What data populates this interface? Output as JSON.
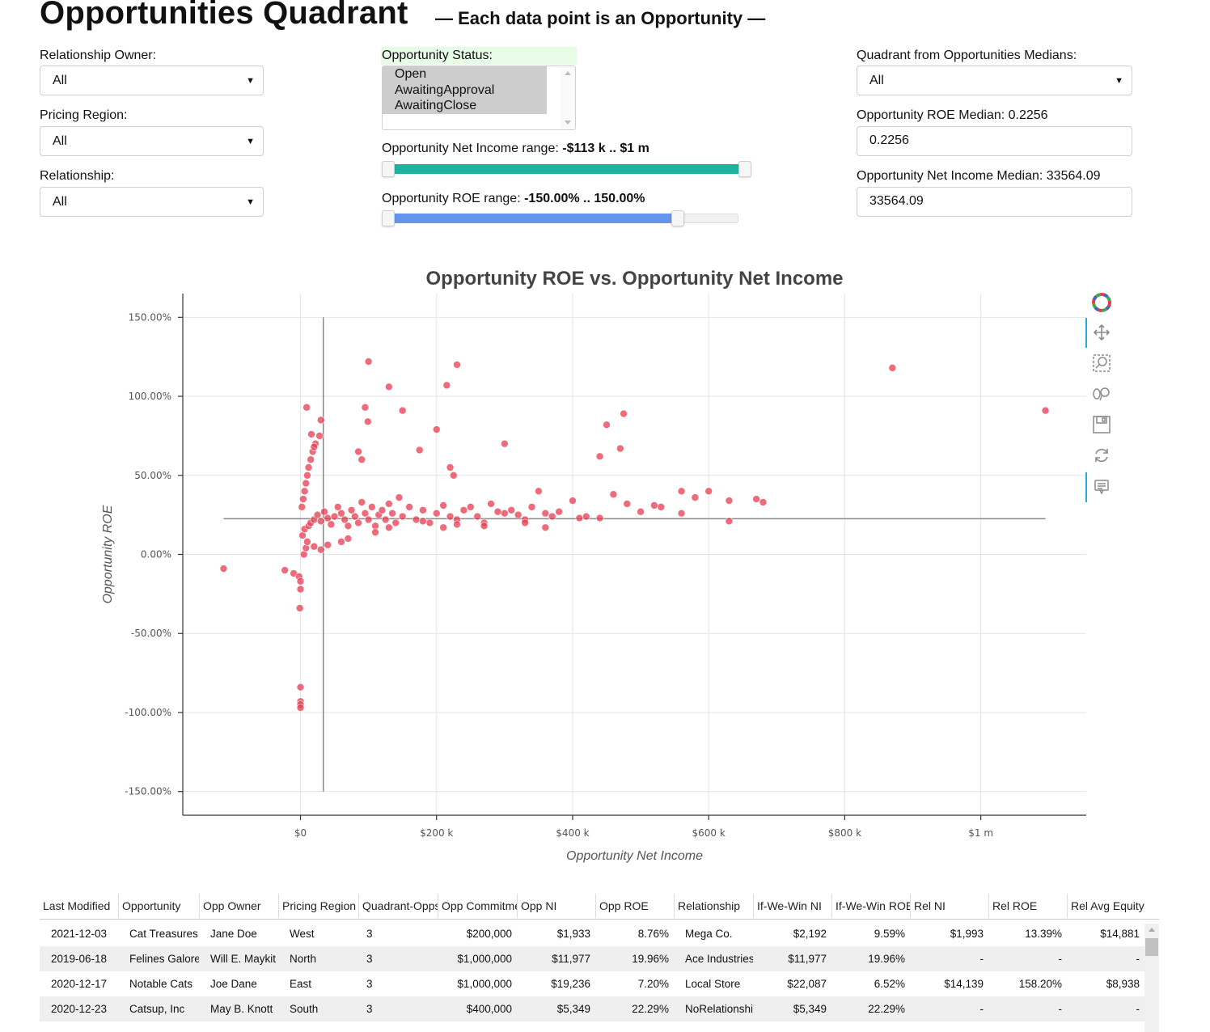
{
  "header": {
    "title": "Opportunities Quadrant",
    "subtitle": "— Each data point is an Opportunity —"
  },
  "filters": {
    "relationship_owner": {
      "label": "Relationship Owner:",
      "value": "All"
    },
    "pricing_region": {
      "label": "Pricing Region:",
      "value": "All"
    },
    "relationship": {
      "label": "Relationship:",
      "value": "All"
    },
    "opportunity_status": {
      "label": "Opportunity Status:",
      "options": [
        "Open",
        "AwaitingApproval",
        "AwaitingClose"
      ]
    },
    "net_income_range": {
      "label": "Opportunity Net Income range: ",
      "value": "-$113 k .. $1 m",
      "fill_fraction": [
        0.0,
        1.0
      ],
      "color": "#20b2a0"
    },
    "roe_range": {
      "label": "Opportunity ROE range: ",
      "value": "-150.00% .. 150.00%",
      "fill_fraction": [
        0.0,
        0.83
      ],
      "color": "#6495ed"
    },
    "quadrant": {
      "label": "Quadrant from Opportunities Medians:",
      "value": "All"
    },
    "roe_median": {
      "label": "Opportunity ROE Median: 0.2256",
      "value": "0.2256"
    },
    "ni_median": {
      "label": "Opportunity Net Income Median: 33564.09",
      "value": "33564.09"
    }
  },
  "chart_data": {
    "type": "scatter",
    "title": "Opportunity ROE vs. Opportunity Net Income",
    "xlabel": "Opportunity Net Income",
    "ylabel": "Opportunity ROE",
    "x_ticks": [
      {
        "v": 0,
        "label": "$0"
      },
      {
        "v": 200000,
        "label": "$200 k"
      },
      {
        "v": 400000,
        "label": "$400 k"
      },
      {
        "v": 600000,
        "label": "$600 k"
      },
      {
        "v": 800000,
        "label": "$800 k"
      },
      {
        "v": 1000000,
        "label": "$1 m"
      }
    ],
    "y_ticks": [
      {
        "v": 150,
        "label": "150.00%"
      },
      {
        "v": 100,
        "label": "100.00%"
      },
      {
        "v": 50,
        "label": "50.00%"
      },
      {
        "v": 0,
        "label": "0.00%"
      },
      {
        "v": -50,
        "label": "-50.00%"
      },
      {
        "v": -100,
        "label": "-100.00%"
      },
      {
        "v": -150,
        "label": "-150.00%"
      }
    ],
    "xlim": [
      -173000,
      1155000
    ],
    "ylim": [
      -165,
      165
    ],
    "median_x": 33564.09,
    "median_y": 22.56,
    "grid": true,
    "point_color": "#e8394f",
    "series": [
      {
        "points": [
          [
            -113000,
            -9
          ],
          [
            -23000,
            -10
          ],
          [
            -10000,
            -12
          ],
          [
            -2000,
            -14
          ],
          [
            0,
            -17
          ],
          [
            0,
            -22
          ],
          [
            -1000,
            -34
          ],
          [
            0,
            -84
          ],
          [
            0,
            -93
          ],
          [
            0,
            -95
          ],
          [
            0,
            -97
          ],
          [
            5000,
            0
          ],
          [
            8000,
            4
          ],
          [
            10000,
            8
          ],
          [
            3000,
            12
          ],
          [
            6000,
            16
          ],
          [
            12000,
            18
          ],
          [
            15000,
            20
          ],
          [
            20000,
            22
          ],
          [
            25000,
            25
          ],
          [
            30000,
            21
          ],
          [
            35000,
            27
          ],
          [
            40000,
            23
          ],
          [
            45000,
            19
          ],
          [
            50000,
            24
          ],
          [
            2000,
            30
          ],
          [
            4000,
            35
          ],
          [
            6000,
            40
          ],
          [
            8000,
            45
          ],
          [
            10000,
            50
          ],
          [
            12000,
            55
          ],
          [
            15000,
            60
          ],
          [
            18000,
            65
          ],
          [
            22000,
            70
          ],
          [
            28000,
            75
          ],
          [
            9000,
            93
          ],
          [
            30000,
            85
          ],
          [
            16000,
            76
          ],
          [
            20000,
            68
          ],
          [
            55000,
            30
          ],
          [
            60000,
            26
          ],
          [
            65000,
            22
          ],
          [
            70000,
            18
          ],
          [
            75000,
            28
          ],
          [
            80000,
            24
          ],
          [
            85000,
            20
          ],
          [
            90000,
            33
          ],
          [
            95000,
            26
          ],
          [
            100000,
            22
          ],
          [
            105000,
            30
          ],
          [
            110000,
            18
          ],
          [
            115000,
            25
          ],
          [
            120000,
            28
          ],
          [
            125000,
            22
          ],
          [
            130000,
            32
          ],
          [
            135000,
            26
          ],
          [
            140000,
            20
          ],
          [
            145000,
            36
          ],
          [
            150000,
            24
          ],
          [
            160000,
            30
          ],
          [
            170000,
            22
          ],
          [
            180000,
            28
          ],
          [
            190000,
            20
          ],
          [
            200000,
            26
          ],
          [
            210000,
            31
          ],
          [
            220000,
            24
          ],
          [
            230000,
            22
          ],
          [
            240000,
            28
          ],
          [
            250000,
            30
          ],
          [
            260000,
            24
          ],
          [
            270000,
            20
          ],
          [
            280000,
            32
          ],
          [
            290000,
            27
          ],
          [
            300000,
            26
          ],
          [
            310000,
            28
          ],
          [
            320000,
            25
          ],
          [
            330000,
            22
          ],
          [
            340000,
            30
          ],
          [
            350000,
            40
          ],
          [
            360000,
            26
          ],
          [
            370000,
            24
          ],
          [
            380000,
            27
          ],
          [
            400000,
            34
          ],
          [
            420000,
            24
          ],
          [
            440000,
            23
          ],
          [
            460000,
            38
          ],
          [
            480000,
            32
          ],
          [
            500000,
            27
          ],
          [
            530000,
            30
          ],
          [
            560000,
            26
          ],
          [
            580000,
            36
          ],
          [
            600000,
            40
          ],
          [
            630000,
            34
          ],
          [
            630000,
            21
          ],
          [
            670000,
            35
          ],
          [
            680000,
            33
          ],
          [
            560000,
            40
          ],
          [
            440000,
            62
          ],
          [
            450000,
            82
          ],
          [
            470000,
            67
          ],
          [
            475000,
            89
          ],
          [
            100000,
            122
          ],
          [
            230000,
            120
          ],
          [
            130000,
            106
          ],
          [
            215000,
            107
          ],
          [
            150000,
            91
          ],
          [
            200000,
            79
          ],
          [
            175000,
            66
          ],
          [
            300000,
            70
          ],
          [
            220000,
            55
          ],
          [
            225000,
            50
          ],
          [
            95000,
            93
          ],
          [
            99000,
            84
          ],
          [
            85000,
            65
          ],
          [
            90000,
            60
          ],
          [
            870000,
            118
          ],
          [
            1095000,
            91
          ],
          [
            520000,
            31
          ],
          [
            410000,
            23
          ],
          [
            360000,
            17
          ],
          [
            330000,
            20
          ],
          [
            270000,
            18
          ],
          [
            230000,
            19
          ],
          [
            210000,
            17
          ],
          [
            180000,
            21
          ],
          [
            130000,
            17
          ],
          [
            110000,
            14
          ],
          [
            70000,
            10
          ],
          [
            60000,
            8
          ],
          [
            40000,
            6
          ],
          [
            30000,
            3
          ],
          [
            20000,
            5
          ]
        ]
      }
    ]
  },
  "toolbar": {
    "tools": [
      "bokeh-logo-icon",
      "pan-icon",
      "box-zoom-icon",
      "wheel-zoom-icon",
      "save-icon",
      "reset-icon",
      "hover-icon"
    ]
  },
  "table": {
    "columns": [
      "Last Modified",
      "Opportunity",
      "Opp Owner",
      "Pricing Region",
      "Quadrant-Opps",
      "Opp Commitment",
      "Opp NI",
      "Opp ROE",
      "Relationship",
      "If-We-Win NI",
      "If-We-Win ROE",
      "Rel NI",
      "Rel ROE",
      "Rel Avg Equity"
    ],
    "rows": [
      [
        "2021-12-03",
        "Cat Treasures",
        "Jane Doe",
        "West",
        "3",
        "$200,000",
        "$1,933",
        "8.76%",
        "Mega Co.",
        "$2,192",
        "9.59%",
        "$1,993",
        "13.39%",
        "$14,881"
      ],
      [
        "2019-06-18",
        "Felines Galore",
        "Will E. Maykit",
        "North",
        "3",
        "$1,000,000",
        "$11,977",
        "19.96%",
        "Ace Industries",
        "$11,977",
        "19.96%",
        "-",
        "-",
        "-"
      ],
      [
        "2020-12-17",
        "Notable Cats",
        "Joe Dane",
        "East",
        "3",
        "$1,000,000",
        "$19,236",
        "7.20%",
        "Local Store",
        "$22,087",
        "6.52%",
        "$14,139",
        "158.20%",
        "$8,938"
      ],
      [
        "2020-12-23",
        "Catsup, Inc",
        "May B. Knott",
        "South",
        "3",
        "$400,000",
        "$5,349",
        "22.29%",
        "NoRelationship",
        "$5,349",
        "22.29%",
        "-",
        "-",
        "-"
      ]
    ]
  }
}
